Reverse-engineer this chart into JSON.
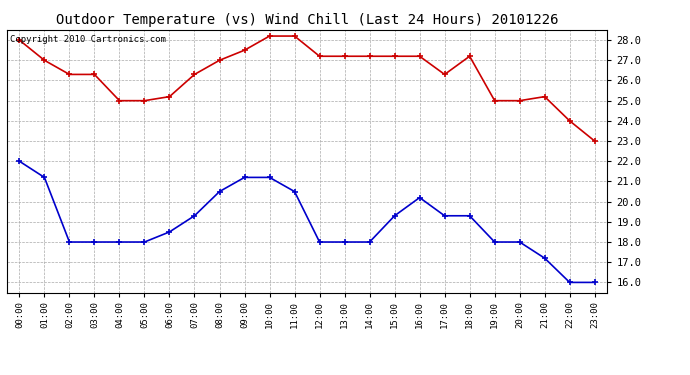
{
  "title": "Outdoor Temperature (vs) Wind Chill (Last 24 Hours) 20101226",
  "copyright_text": "Copyright 2010 Cartronics.com",
  "hours": [
    "00:00",
    "01:00",
    "02:00",
    "03:00",
    "04:00",
    "05:00",
    "06:00",
    "07:00",
    "08:00",
    "09:00",
    "10:00",
    "11:00",
    "12:00",
    "13:00",
    "14:00",
    "15:00",
    "16:00",
    "17:00",
    "18:00",
    "19:00",
    "20:00",
    "21:00",
    "22:00",
    "23:00"
  ],
  "temp_red": [
    28.0,
    27.0,
    26.3,
    26.3,
    25.0,
    25.0,
    25.2,
    26.3,
    27.0,
    27.5,
    28.2,
    28.2,
    27.2,
    27.2,
    27.2,
    27.2,
    27.2,
    26.3,
    27.2,
    25.0,
    25.0,
    25.2,
    24.0,
    23.0
  ],
  "temp_blue": [
    22.0,
    21.2,
    18.0,
    18.0,
    18.0,
    18.0,
    18.5,
    19.3,
    20.5,
    21.2,
    21.2,
    20.5,
    18.0,
    18.0,
    18.0,
    19.3,
    20.2,
    19.3,
    19.3,
    18.0,
    18.0,
    17.2,
    16.0,
    16.0
  ],
  "ylim": [
    15.5,
    28.5
  ],
  "yticks": [
    16.0,
    17.0,
    18.0,
    19.0,
    20.0,
    21.0,
    22.0,
    23.0,
    24.0,
    25.0,
    26.0,
    27.0,
    28.0
  ],
  "red_color": "#cc0000",
  "blue_color": "#0000cc",
  "grid_color": "#aaaaaa",
  "bg_color": "#ffffff",
  "plot_bg_color": "#ffffff",
  "title_fontsize": 10,
  "copyright_fontsize": 6.5,
  "marker": "+",
  "marker_size": 5,
  "line_width": 1.2
}
